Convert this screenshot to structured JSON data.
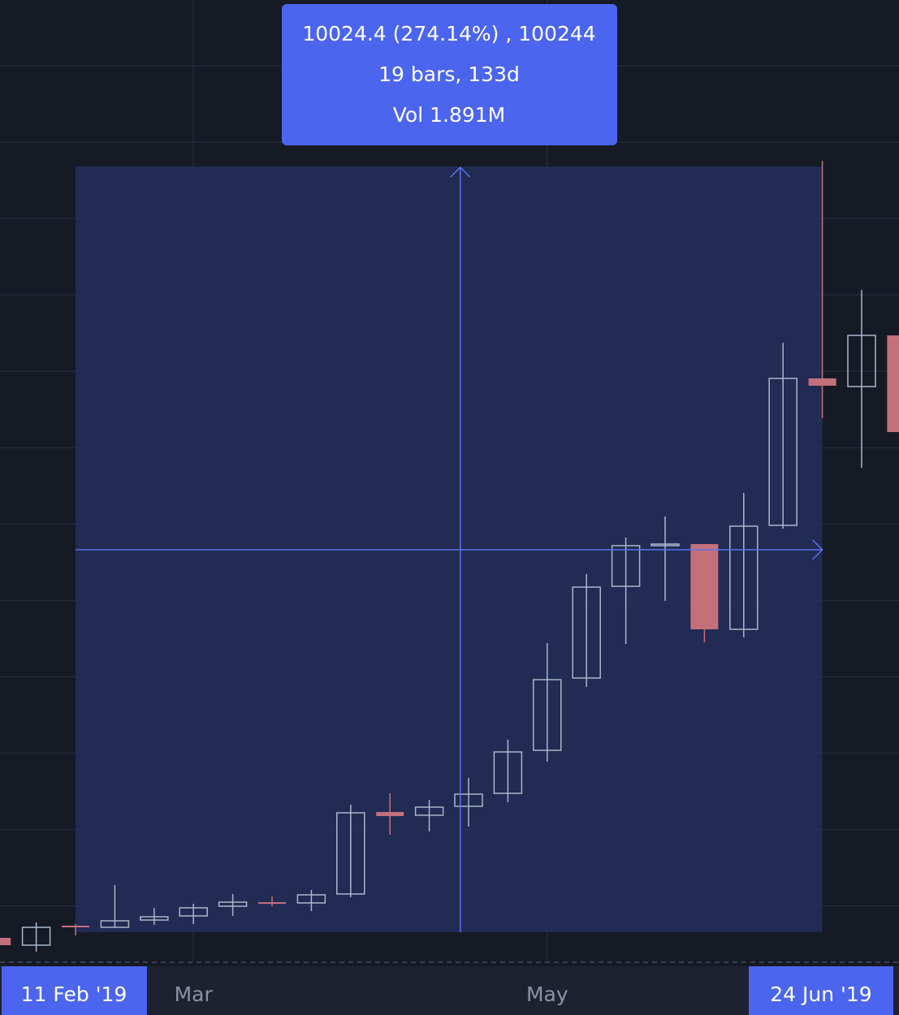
{
  "chart_data": {
    "type": "candlestick",
    "categories": [
      null,
      null,
      "11 Feb '19",
      null,
      null,
      "Mar",
      null,
      null,
      null,
      null,
      null,
      null,
      null,
      null,
      "May",
      null,
      null,
      null,
      null,
      null,
      null,
      "24 Jun '19",
      null,
      null
    ],
    "open": [
      3583,
      3487,
      3742,
      3721,
      3816,
      3870,
      3997,
      4050,
      4040,
      4157,
      5230,
      5188,
      5305,
      5475,
      6038,
      6984,
      8185,
      8717,
      8738,
      7622,
      8983,
      10907,
      10800,
      11470
    ],
    "high": [
      3583,
      3785,
      3763,
      4274,
      3976,
      4029,
      4157,
      4125,
      4210,
      5326,
      5475,
      5390,
      5677,
      6176,
      7441,
      8345,
      8823,
      9100,
      8738,
      9408,
      11374,
      13756,
      12065,
      11470
    ],
    "low": [
      3487,
      3402,
      3614,
      3721,
      3753,
      3763,
      3870,
      3997,
      3933,
      4114,
      4933,
      4975,
      5039,
      5358,
      5889,
      6867,
      7431,
      7994,
      7452,
      7516,
      8940,
      10386,
      9737,
      10205
    ],
    "close": [
      3487,
      3721,
      3721,
      3806,
      3859,
      3976,
      4050,
      4029,
      4146,
      5220,
      5177,
      5294,
      5464,
      6017,
      6963,
      8175,
      8717,
      8738,
      7622,
      8972,
      10907,
      10811,
      11470,
      10205
    ],
    "up_color": "#a9b7cb",
    "down_color": "#c4707b",
    "grid_lines": [
      4000,
      5000,
      6000,
      7000,
      8000,
      9000,
      10000,
      11000,
      12000,
      13000,
      14000,
      15000
    ],
    "measure": {
      "lines": [
        "10024.4 (274.14%) , 100244",
        "19 bars, 133d",
        "Vol 1.891M"
      ],
      "color": "#4b65ee"
    }
  }
}
